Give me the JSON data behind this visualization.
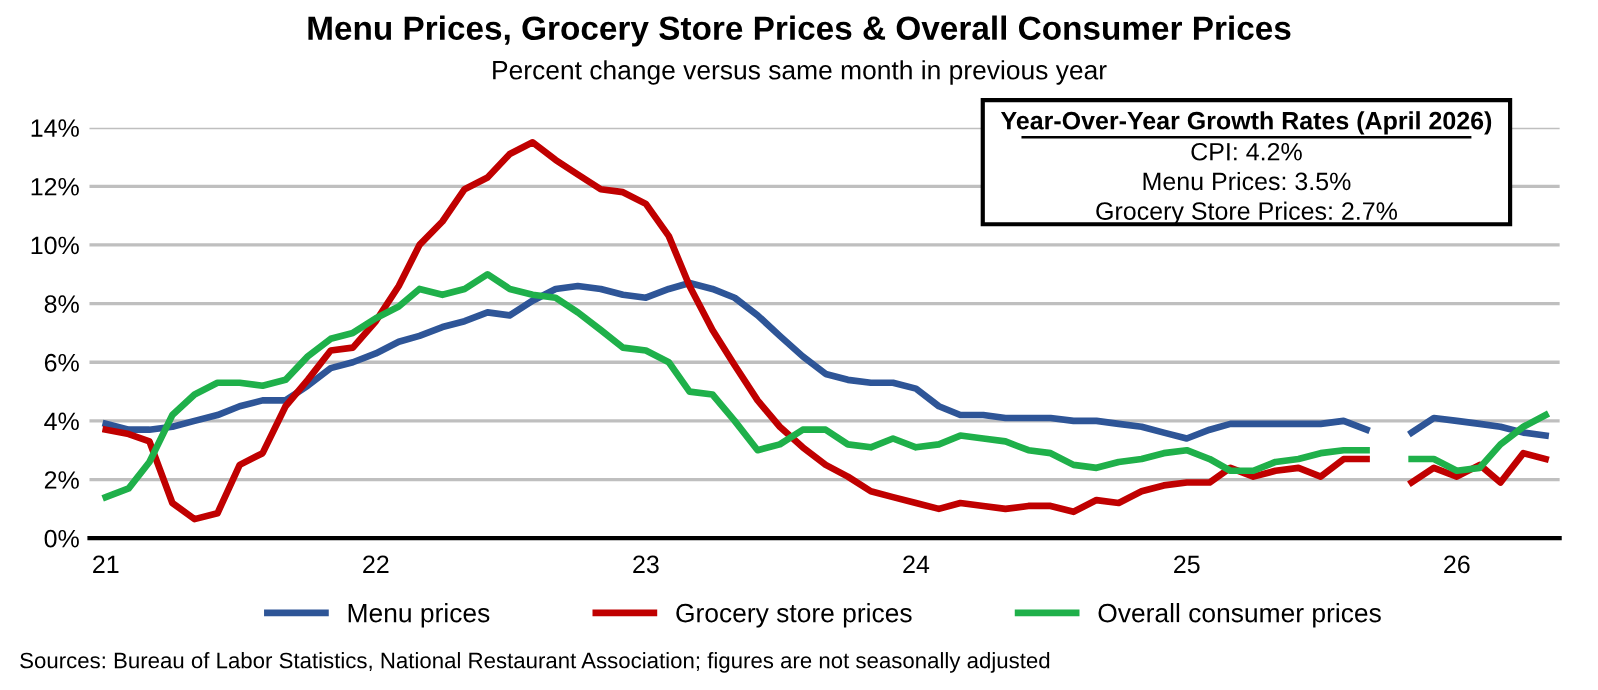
{
  "chart_data": {
    "type": "line",
    "title": "Menu Prices, Grocery Store Prices & Overall Consumer Prices",
    "subtitle": "Percent change versus same month in previous year",
    "x": [
      "2021-01",
      "2021-02",
      "2021-03",
      "2021-04",
      "2021-05",
      "2021-06",
      "2021-07",
      "2021-08",
      "2021-09",
      "2021-10",
      "2021-11",
      "2021-12",
      "2022-01",
      "2022-02",
      "2022-03",
      "2022-04",
      "2022-05",
      "2022-06",
      "2022-07",
      "2022-08",
      "2022-09",
      "2022-10",
      "2022-11",
      "2022-12",
      "2023-01",
      "2023-02",
      "2023-03",
      "2023-04",
      "2023-05",
      "2023-06",
      "2023-07",
      "2023-08",
      "2023-09",
      "2023-10",
      "2023-11",
      "2023-12",
      "2024-01",
      "2024-02",
      "2024-03",
      "2024-04",
      "2024-05",
      "2024-06",
      "2024-07",
      "2024-08",
      "2024-09",
      "2024-10",
      "2024-11",
      "2024-12",
      "2025-01",
      "2025-02",
      "2025-03",
      "2025-04",
      "2025-05",
      "2025-06",
      "2025-07",
      "2025-08",
      "2025-09",
      "2025-10",
      "2025-11",
      "2025-12",
      "2026-01",
      "2026-02",
      "2026-03",
      "2026-04",
      "2026-05"
    ],
    "series": [
      {
        "name": "Menu prices",
        "color": "#2e5597",
        "values": [
          3.9,
          3.7,
          3.7,
          3.8,
          4.0,
          4.2,
          4.5,
          4.7,
          4.7,
          5.2,
          5.8,
          6.0,
          6.3,
          6.7,
          6.9,
          7.2,
          7.4,
          7.7,
          7.6,
          8.1,
          8.5,
          8.6,
          8.5,
          8.3,
          8.2,
          8.5,
          8.7,
          8.5,
          8.2,
          7.6,
          6.9,
          6.2,
          5.6,
          5.4,
          5.3,
          5.3,
          5.1,
          4.5,
          4.2,
          4.2,
          4.1,
          4.1,
          4.1,
          4.0,
          4.0,
          3.9,
          3.8,
          3.6,
          3.4,
          3.7,
          3.9,
          3.9,
          3.9,
          3.9,
          3.9,
          4.0,
          3.7,
          null,
          3.6,
          4.1,
          4.0,
          3.9,
          3.8,
          3.6,
          3.5
        ]
      },
      {
        "name": "Grocery store prices",
        "color": "#c00000",
        "values": [
          3.7,
          3.55,
          3.3,
          1.2,
          0.65,
          0.85,
          2.5,
          2.9,
          4.5,
          5.4,
          6.4,
          6.5,
          7.4,
          8.6,
          10.0,
          10.8,
          11.9,
          12.3,
          13.1,
          13.5,
          12.9,
          12.4,
          11.9,
          11.8,
          11.4,
          10.3,
          8.6,
          7.1,
          5.9,
          4.7,
          3.8,
          3.1,
          2.5,
          2.1,
          1.6,
          1.4,
          1.2,
          1.0,
          1.2,
          1.1,
          1.0,
          1.1,
          1.1,
          0.9,
          1.3,
          1.2,
          1.6,
          1.8,
          1.9,
          1.9,
          2.4,
          2.1,
          2.3,
          2.4,
          2.1,
          2.7,
          2.7,
          null,
          1.9,
          2.4,
          2.1,
          2.5,
          1.9,
          2.9,
          2.7
        ]
      },
      {
        "name": "Overall consumer prices",
        "color": "#1fb04a",
        "values": [
          1.4,
          1.7,
          2.6,
          4.2,
          4.9,
          5.3,
          5.3,
          5.2,
          5.4,
          6.2,
          6.8,
          7.0,
          7.5,
          7.9,
          8.5,
          8.3,
          8.5,
          9.0,
          8.5,
          8.3,
          8.2,
          7.7,
          7.1,
          6.5,
          6.4,
          6.0,
          5.0,
          4.9,
          4.0,
          3.0,
          3.2,
          3.7,
          3.7,
          3.2,
          3.1,
          3.4,
          3.1,
          3.2,
          3.5,
          3.4,
          3.3,
          3.0,
          2.9,
          2.5,
          2.4,
          2.6,
          2.7,
          2.9,
          3.0,
          2.7,
          2.3,
          2.3,
          2.6,
          2.7,
          2.9,
          3.0,
          3.0,
          null,
          2.7,
          2.7,
          2.3,
          2.4,
          3.2,
          3.8,
          4.2
        ]
      }
    ],
    "xlim": [
      "2020-12-10",
      "2026-05-20"
    ],
    "xticks": [
      {
        "value": "2021-01",
        "label": "21"
      },
      {
        "value": "2022-01",
        "label": "22"
      },
      {
        "value": "2023-01",
        "label": "23"
      },
      {
        "value": "2024-01",
        "label": "24"
      },
      {
        "value": "2025-01",
        "label": "25"
      },
      {
        "value": "2026-01",
        "label": "26"
      }
    ],
    "ylim": [
      0,
      14
    ],
    "yticks": [
      {
        "value": 0,
        "label": "0%"
      },
      {
        "value": 2,
        "label": "2%"
      },
      {
        "value": 4,
        "label": "4%"
      },
      {
        "value": 6,
        "label": "6%"
      },
      {
        "value": 8,
        "label": "8%"
      },
      {
        "value": 10,
        "label": "10%"
      },
      {
        "value": 12,
        "label": "12%"
      },
      {
        "value": 14,
        "label": "14%"
      }
    ],
    "grid": "y",
    "legend": "bottom",
    "marker": "none",
    "line_style": "solid",
    "annotations": [
      "Year-Over-Year Growth Rates (April 2026)",
      "CPI: 4.2%",
      "Menu Prices: 3.5%",
      "Grocery Store Prices: 2.7%",
      "Sources: Bureau of Labor Statistics, National Restaurant Association; figures are not seasonally adjusted"
    ]
  }
}
